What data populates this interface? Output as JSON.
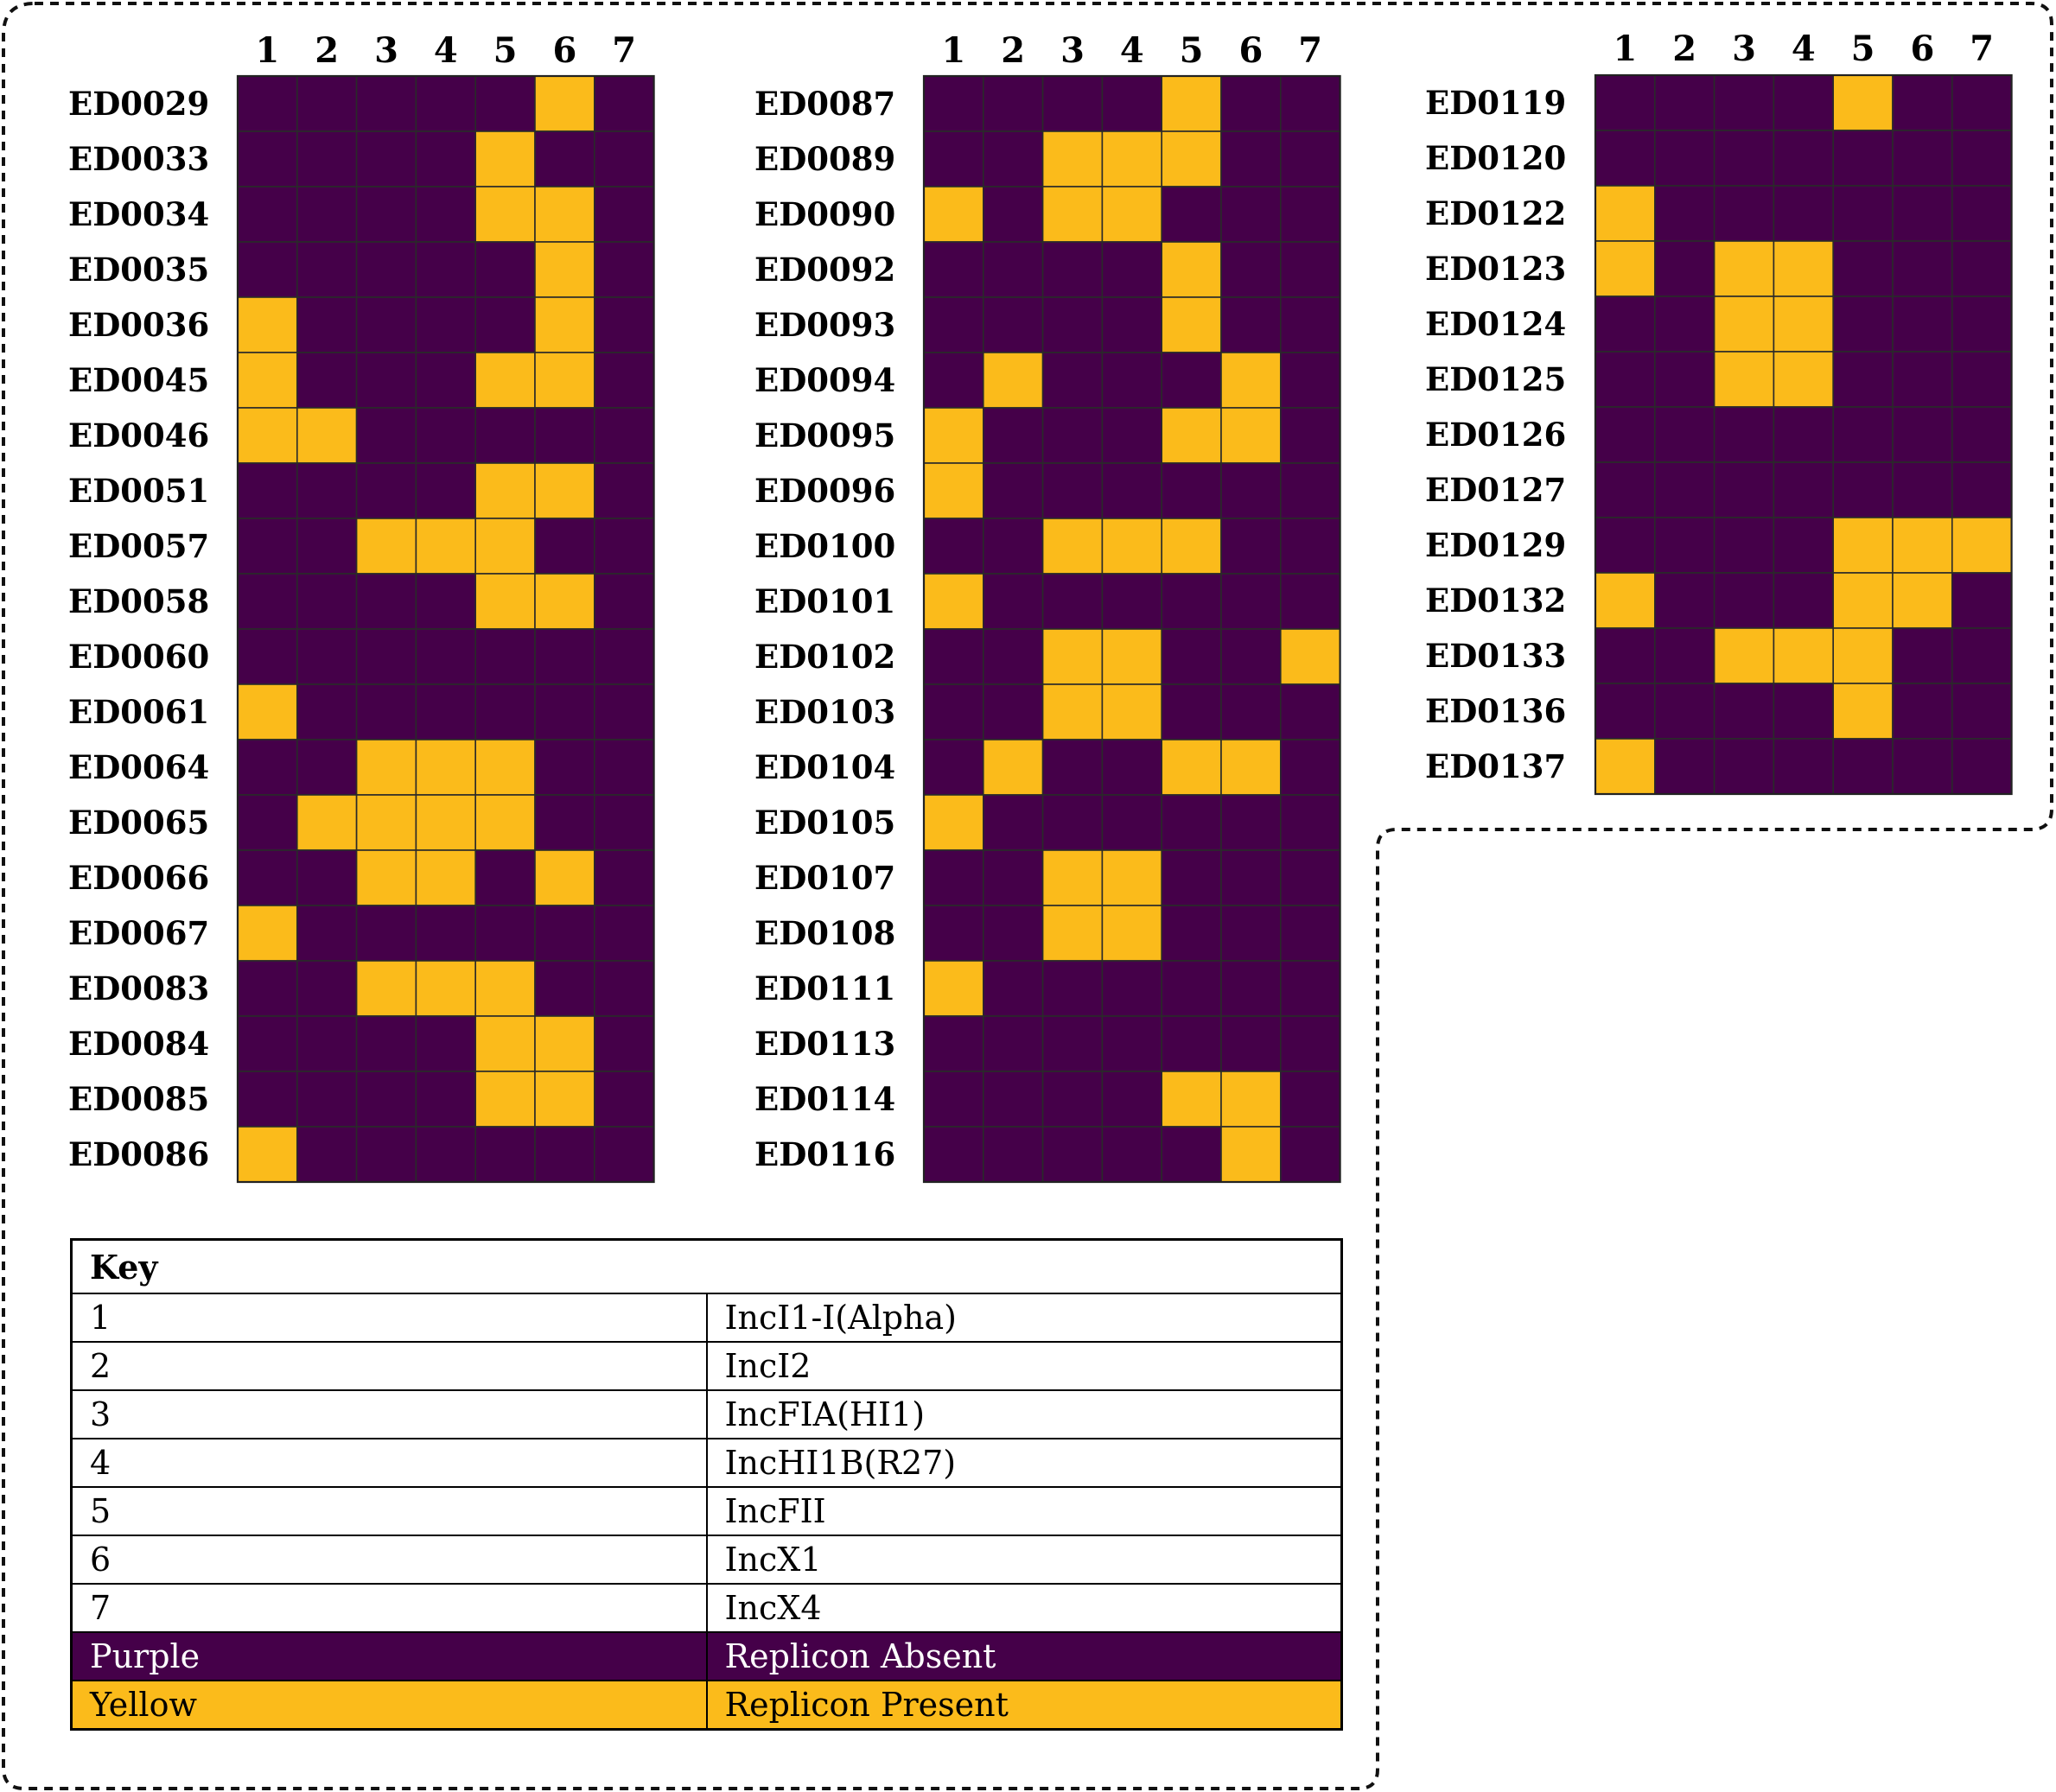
{
  "chart_data": {
    "type": "heatmap",
    "x_categories": [
      "1",
      "2",
      "3",
      "4",
      "5",
      "6",
      "7"
    ],
    "colors": {
      "absent": "#450049",
      "present": "#fbbb1b"
    },
    "panels": [
      {
        "rows": [
          "ED0029",
          "ED0033",
          "ED0034",
          "ED0035",
          "ED0036",
          "ED0045",
          "ED0046",
          "ED0051",
          "ED0057",
          "ED0058",
          "ED0060",
          "ED0061",
          "ED0064",
          "ED0065",
          "ED0066",
          "ED0067",
          "ED0083",
          "ED0084",
          "ED0085",
          "ED0086"
        ],
        "values": [
          [
            0,
            0,
            0,
            0,
            0,
            1,
            0
          ],
          [
            0,
            0,
            0,
            0,
            1,
            0,
            0
          ],
          [
            0,
            0,
            0,
            0,
            1,
            1,
            0
          ],
          [
            0,
            0,
            0,
            0,
            0,
            1,
            0
          ],
          [
            1,
            0,
            0,
            0,
            0,
            1,
            0
          ],
          [
            1,
            0,
            0,
            0,
            1,
            1,
            0
          ],
          [
            1,
            1,
            0,
            0,
            0,
            0,
            0
          ],
          [
            0,
            0,
            0,
            0,
            1,
            1,
            0
          ],
          [
            0,
            0,
            1,
            1,
            1,
            0,
            0
          ],
          [
            0,
            0,
            0,
            0,
            1,
            1,
            0
          ],
          [
            0,
            0,
            0,
            0,
            0,
            0,
            0
          ],
          [
            1,
            0,
            0,
            0,
            0,
            0,
            0
          ],
          [
            0,
            0,
            1,
            1,
            1,
            0,
            0
          ],
          [
            0,
            1,
            1,
            1,
            1,
            0,
            0
          ],
          [
            0,
            0,
            1,
            1,
            0,
            1,
            0
          ],
          [
            1,
            0,
            0,
            0,
            0,
            0,
            0
          ],
          [
            0,
            0,
            1,
            1,
            1,
            0,
            0
          ],
          [
            0,
            0,
            0,
            0,
            1,
            1,
            0
          ],
          [
            0,
            0,
            0,
            0,
            1,
            1,
            0
          ],
          [
            1,
            0,
            0,
            0,
            0,
            0,
            0
          ]
        ]
      },
      {
        "rows": [
          "ED0087",
          "ED0089",
          "ED0090",
          "ED0092",
          "ED0093",
          "ED0094",
          "ED0095",
          "ED0096",
          "ED0100",
          "ED0101",
          "ED0102",
          "ED0103",
          "ED0104",
          "ED0105",
          "ED0107",
          "ED0108",
          "ED0111",
          "ED0113",
          "ED0114",
          "ED0116"
        ],
        "values": [
          [
            0,
            0,
            0,
            0,
            1,
            0,
            0
          ],
          [
            0,
            0,
            1,
            1,
            1,
            0,
            0
          ],
          [
            1,
            0,
            1,
            1,
            0,
            0,
            0
          ],
          [
            0,
            0,
            0,
            0,
            1,
            0,
            0
          ],
          [
            0,
            0,
            0,
            0,
            1,
            0,
            0
          ],
          [
            0,
            1,
            0,
            0,
            0,
            1,
            0
          ],
          [
            1,
            0,
            0,
            0,
            1,
            1,
            0
          ],
          [
            1,
            0,
            0,
            0,
            0,
            0,
            0
          ],
          [
            0,
            0,
            1,
            1,
            1,
            0,
            0
          ],
          [
            1,
            0,
            0,
            0,
            0,
            0,
            0
          ],
          [
            0,
            0,
            1,
            1,
            0,
            0,
            1
          ],
          [
            0,
            0,
            1,
            1,
            0,
            0,
            0
          ],
          [
            0,
            1,
            0,
            0,
            1,
            1,
            0
          ],
          [
            1,
            0,
            0,
            0,
            0,
            0,
            0
          ],
          [
            0,
            0,
            1,
            1,
            0,
            0,
            0
          ],
          [
            0,
            0,
            1,
            1,
            0,
            0,
            0
          ],
          [
            1,
            0,
            0,
            0,
            0,
            0,
            0
          ],
          [
            0,
            0,
            0,
            0,
            0,
            0,
            0
          ],
          [
            0,
            0,
            0,
            0,
            1,
            1,
            0
          ],
          [
            0,
            0,
            0,
            0,
            0,
            1,
            0
          ]
        ]
      },
      {
        "rows": [
          "ED0119",
          "ED0120",
          "ED0122",
          "ED0123",
          "ED0124",
          "ED0125",
          "ED0126",
          "ED0127",
          "ED0129",
          "ED0132",
          "ED0133",
          "ED0136",
          "ED0137"
        ],
        "values": [
          [
            0,
            0,
            0,
            0,
            1,
            0,
            0
          ],
          [
            0,
            0,
            0,
            0,
            0,
            0,
            0
          ],
          [
            1,
            0,
            0,
            0,
            0,
            0,
            0
          ],
          [
            1,
            0,
            1,
            1,
            0,
            0,
            0
          ],
          [
            0,
            0,
            1,
            1,
            0,
            0,
            0
          ],
          [
            0,
            0,
            1,
            1,
            0,
            0,
            0
          ],
          [
            0,
            0,
            0,
            0,
            0,
            0,
            0
          ],
          [
            0,
            0,
            0,
            0,
            0,
            0,
            0
          ],
          [
            0,
            0,
            0,
            0,
            1,
            1,
            1
          ],
          [
            1,
            0,
            0,
            0,
            1,
            1,
            0
          ],
          [
            0,
            0,
            1,
            1,
            1,
            0,
            0
          ],
          [
            0,
            0,
            0,
            0,
            1,
            0,
            0
          ],
          [
            1,
            0,
            0,
            0,
            0,
            0,
            0
          ]
        ]
      }
    ]
  },
  "key": {
    "title": "Key",
    "rows": [
      {
        "code": "1",
        "name": "IncI1-I(Alpha)"
      },
      {
        "code": "2",
        "name": "IncI2"
      },
      {
        "code": "3",
        "name": "IncFIA(HI1)"
      },
      {
        "code": "4",
        "name": "IncHI1B(R27)"
      },
      {
        "code": "5",
        "name": "IncFII"
      },
      {
        "code": "6",
        "name": "IncX1"
      },
      {
        "code": "7",
        "name": "IncX4"
      }
    ],
    "absent": {
      "color_word": "Purple",
      "meaning": "Replicon Absent"
    },
    "present": {
      "color_word": "Yellow",
      "meaning": "Replicon Present"
    }
  }
}
